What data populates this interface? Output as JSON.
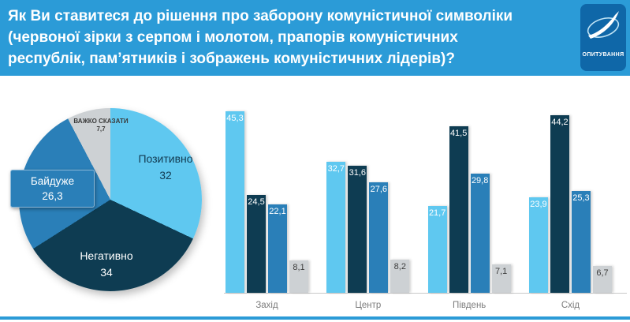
{
  "header": {
    "title": "Як Ви ставитеся до рішення про заборону комуністичної символіки\n(червоної зірки з серпом і молотом,  прапорів комуністичних\nреспублік, пам’ятників і зображень комуністичних лідерів)?",
    "bg": "#2b9bd7"
  },
  "logo": {
    "label": "ОПИТУВАННЯ",
    "bg": "#0f67a8"
  },
  "colors": {
    "positive": "#5fc8f0",
    "negative": "#0e3c52",
    "indifferent": "#2a7fb8",
    "hard": "#cdd1d4"
  },
  "chart_data": [
    {
      "type": "pie",
      "slices": [
        {
          "label": "Позитивно",
          "value": 32,
          "display": "32",
          "color_key": "positive"
        },
        {
          "label": "Негативно",
          "value": 34,
          "display": "34",
          "color_key": "negative"
        },
        {
          "label": "Байдуже",
          "value": 26.3,
          "display": "26,3",
          "color_key": "indifferent"
        },
        {
          "label": "Важко сказати",
          "value": 7.7,
          "display": "7,7",
          "color_key": "hard"
        }
      ]
    },
    {
      "type": "bar",
      "categories": [
        "Захід",
        "Центр",
        "Південь",
        "Схід"
      ],
      "ylim": [
        0,
        50
      ],
      "legend_position": "none",
      "grid": false,
      "series": [
        {
          "name": "Позитивно",
          "color_key": "positive",
          "values": [
            45.3,
            32.7,
            21.7,
            23.9
          ],
          "display": [
            "45,3",
            "32,7",
            "21,7",
            "23,9"
          ]
        },
        {
          "name": "Негативно",
          "color_key": "negative",
          "values": [
            24.5,
            31.6,
            41.5,
            44.2
          ],
          "display": [
            "24,5",
            "31,6",
            "41,5",
            "44,2"
          ]
        },
        {
          "name": "Байдуже",
          "color_key": "indifferent",
          "values": [
            22.1,
            27.6,
            29.8,
            25.3
          ],
          "display": [
            "22,1",
            "27,6",
            "29,8",
            "25,3"
          ]
        },
        {
          "name": "Важко сказати",
          "color_key": "hard",
          "values": [
            8.1,
            8.2,
            7.1,
            6.7
          ],
          "display": [
            "8,1",
            "8,2",
            "7,1",
            "6,7"
          ]
        }
      ]
    }
  ]
}
